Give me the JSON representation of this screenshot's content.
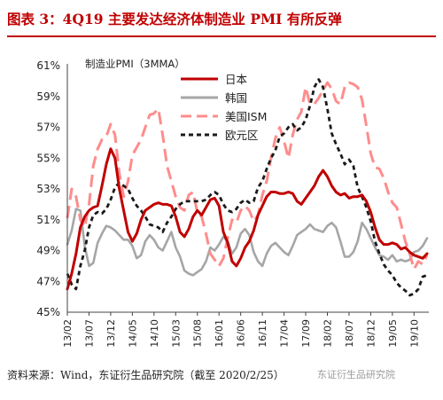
{
  "figure_title": "图表 3：4Q19 主要发达经济体制造业 PMI 有所反弹",
  "source_note": "资料来源：Wind，东证衍生品研究院（截至 2020/2/25）",
  "watermark": "东证衍生品研究院",
  "chart_data": {
    "type": "line",
    "title": "制造业PMI（3MMA）",
    "ylabel_format": "percent",
    "ylim": [
      45,
      61
    ],
    "yticks": [
      45,
      47,
      49,
      51,
      53,
      55,
      57,
      59,
      61
    ],
    "ytick_labels": [
      "45%",
      "47%",
      "49%",
      "51%",
      "53%",
      "55%",
      "57%",
      "59%",
      "61%"
    ],
    "x": [
      "13/02",
      "13/03",
      "13/04",
      "13/05",
      "13/06",
      "13/07",
      "13/08",
      "13/09",
      "13/10",
      "13/11",
      "13/12",
      "14/01",
      "14/02",
      "14/03",
      "14/04",
      "14/05",
      "14/06",
      "14/07",
      "14/08",
      "14/09",
      "14/10",
      "14/11",
      "14/12",
      "15/01",
      "15/02",
      "15/03",
      "15/04",
      "15/05",
      "15/06",
      "15/07",
      "15/08",
      "15/09",
      "15/10",
      "15/11",
      "15/12",
      "16/01",
      "16/02",
      "16/03",
      "16/04",
      "16/05",
      "16/06",
      "16/07",
      "16/08",
      "16/09",
      "16/10",
      "16/11",
      "16/12",
      "17/01",
      "17/02",
      "17/03",
      "17/04",
      "17/05",
      "17/06",
      "17/07",
      "17/08",
      "17/09",
      "17/10",
      "17/11",
      "17/12",
      "18/01",
      "18/02",
      "18/03",
      "18/04",
      "18/05",
      "18/06",
      "18/07",
      "18/08",
      "18/09",
      "18/10",
      "18/11",
      "18/12",
      "19/01",
      "19/02",
      "19/03",
      "19/04",
      "19/05",
      "19/06",
      "19/07",
      "19/08",
      "19/09",
      "19/10",
      "19/11",
      "19/12",
      "20/01"
    ],
    "xtick_labels": [
      "13/02",
      "13/07",
      "13/12",
      "14/05",
      "14/10",
      "15/03",
      "15/08",
      "16/01",
      "16/06",
      "16/11",
      "17/04",
      "17/09",
      "18/02",
      "18/07",
      "18/12",
      "19/05",
      "19/10"
    ],
    "legend_position": "top-center",
    "series": [
      {
        "name": "日本",
        "color": "#c00000",
        "style": "solid",
        "values": [
          46.5,
          47.5,
          48.8,
          50.5,
          51.2,
          51.6,
          51.8,
          51.9,
          53.2,
          54.6,
          55.6,
          55.0,
          53.0,
          51.6,
          50.2,
          49.6,
          50.1,
          51.0,
          51.6,
          51.8,
          52.0,
          52.1,
          52.0,
          52.0,
          51.9,
          51.2,
          50.2,
          49.9,
          50.4,
          51.2,
          51.6,
          51.3,
          51.8,
          52.3,
          52.4,
          51.9,
          50.2,
          49.5,
          48.3,
          48.0,
          48.5,
          49.2,
          49.6,
          50.3,
          51.3,
          51.9,
          52.5,
          52.8,
          52.8,
          52.7,
          52.7,
          52.8,
          52.7,
          52.2,
          52.0,
          52.4,
          52.8,
          53.2,
          53.8,
          54.2,
          53.8,
          53.2,
          52.8,
          52.6,
          52.7,
          52.4,
          52.5,
          52.5,
          52.6,
          52.2,
          51.5,
          50.5,
          49.7,
          49.4,
          49.4,
          49.5,
          49.4,
          49.1,
          49.2,
          48.9,
          48.7,
          48.6,
          48.5,
          48.8
        ]
      },
      {
        "name": "韩国",
        "color": "#a6a6a6",
        "style": "solid",
        "values": [
          49.4,
          50.3,
          51.7,
          51.6,
          49.3,
          48.0,
          48.2,
          49.5,
          50.1,
          50.6,
          50.5,
          50.3,
          50.0,
          49.7,
          49.7,
          49.3,
          48.5,
          48.7,
          49.6,
          50.0,
          49.7,
          49.2,
          49.0,
          49.6,
          50.2,
          49.2,
          48.6,
          47.7,
          47.5,
          47.4,
          47.6,
          47.8,
          48.3,
          49.2,
          49.0,
          49.4,
          49.9,
          49.6,
          48.8,
          49.2,
          50.1,
          50.4,
          50.0,
          48.9,
          48.3,
          48.0,
          48.8,
          49.3,
          49.5,
          49.2,
          48.9,
          48.7,
          49.3,
          50.0,
          50.2,
          50.4,
          50.7,
          50.4,
          50.3,
          50.2,
          50.6,
          50.8,
          50.5,
          49.6,
          48.6,
          48.6,
          48.9,
          49.6,
          50.8,
          50.4,
          49.8,
          49.2,
          48.7,
          48.6,
          48.4,
          48.7,
          48.3,
          48.4,
          48.3,
          48.4,
          48.9,
          49.0,
          49.3,
          49.8
        ]
      },
      {
        "name": "美国ISM",
        "color": "#ff8c8c",
        "style": "dashed",
        "values": [
          51.1,
          53.0,
          52.5,
          51.0,
          50.5,
          52.0,
          54.5,
          55.6,
          56.2,
          56.4,
          57.2,
          56.5,
          54.0,
          52.5,
          53.5,
          55.2,
          55.7,
          56.2,
          57.0,
          57.8,
          57.9,
          58.2,
          56.5,
          54.5,
          53.5,
          52.5,
          51.8,
          51.6,
          52.6,
          52.8,
          51.5,
          51.2,
          50.1,
          48.8,
          48.4,
          48.0,
          48.5,
          49.8,
          51.0,
          50.8,
          51.6,
          51.9,
          51.6,
          50.9,
          51.3,
          52.6,
          53.5,
          55.0,
          56.3,
          57.0,
          56.1,
          55.0,
          56.5,
          57.5,
          58.0,
          59.6,
          58.5,
          58.5,
          58.9,
          59.4,
          59.9,
          59.5,
          58.7,
          58.5,
          59.6,
          59.9,
          59.8,
          59.6,
          58.8,
          57.1,
          55.3,
          54.4,
          54.3,
          53.7,
          52.8,
          52.1,
          51.8,
          50.7,
          49.6,
          48.8,
          47.8,
          48.3,
          48.1,
          48.7
        ]
      },
      {
        "name": "欧元区",
        "color": "#1a1a1a",
        "style": "dashed",
        "values": [
          47.5,
          46.8,
          46.5,
          48.0,
          49.0,
          50.5,
          51.3,
          51.5,
          51.4,
          51.7,
          52.3,
          53.1,
          53.4,
          53.2,
          53.0,
          52.4,
          51.9,
          51.6,
          51.2,
          50.7,
          50.6,
          50.5,
          50.2,
          50.8,
          51.2,
          51.7,
          52.0,
          52.2,
          52.2,
          52.2,
          52.2,
          52.2,
          52.3,
          52.6,
          52.8,
          52.6,
          52.0,
          51.6,
          51.5,
          51.7,
          52.1,
          52.3,
          52.1,
          52.2,
          53.1,
          53.5,
          54.3,
          55.0,
          55.5,
          56.4,
          56.6,
          57.0,
          57.2,
          56.8,
          57.0,
          57.5,
          58.4,
          59.6,
          60.1,
          59.6,
          58.2,
          56.6,
          55.9,
          55.3,
          54.6,
          54.9,
          54.5,
          53.1,
          52.5,
          51.8,
          50.9,
          49.6,
          48.8,
          48.1,
          47.7,
          47.4,
          46.9,
          46.6,
          46.4,
          46.1,
          46.2,
          46.5,
          47.3,
          47.4
        ]
      }
    ]
  }
}
